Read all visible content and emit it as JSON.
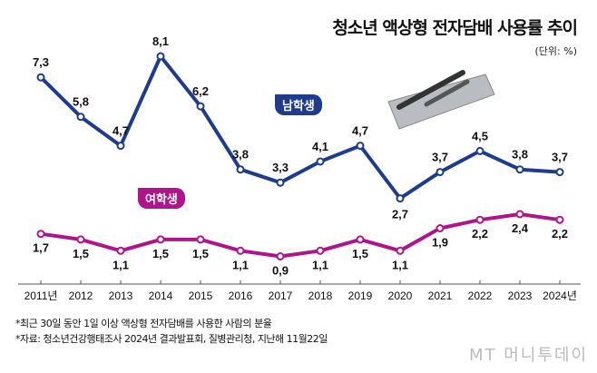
{
  "chart_data": {
    "type": "line",
    "title": "청소년 액상형 전자담배 사용률 추이",
    "unit": "(단위: %)",
    "categories": [
      "2011년",
      "2012",
      "2013",
      "2014",
      "2015",
      "2016",
      "2017",
      "2018",
      "2019",
      "2020",
      "2021",
      "2022",
      "2023",
      "2024년"
    ],
    "series": [
      {
        "name": "남학생",
        "color": "#1e3b8e",
        "values": [
          7.3,
          5.8,
          4.7,
          8.1,
          6.2,
          3.8,
          3.3,
          4.1,
          4.7,
          2.7,
          3.7,
          4.5,
          3.8,
          3.7
        ]
      },
      {
        "name": "여학생",
        "color": "#b0148a",
        "values": [
          1.7,
          1.5,
          1.1,
          1.5,
          1.5,
          1.1,
          0.9,
          1.1,
          1.5,
          1.1,
          1.9,
          2.2,
          2.4,
          2.2
        ]
      }
    ],
    "grid": false
  },
  "notes": [
    "*최근 30일 동안 1일 이상 액상형 전자담배를 사용한 사람의 분율",
    "*자료: 청소년건강행태조사 2024년 결과발표회, 질병관리청, 지난해 11월22일"
  ],
  "logo": "MT 머니투데이"
}
